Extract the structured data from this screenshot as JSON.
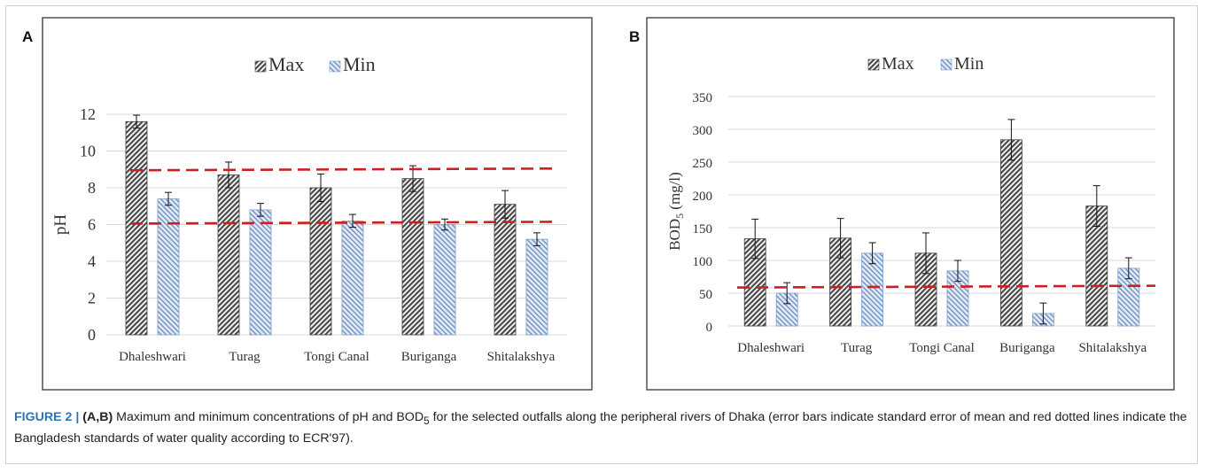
{
  "panels": [
    {
      "letter": "A"
    },
    {
      "letter": "B"
    }
  ],
  "chart_data": [
    {
      "type": "bar",
      "categories": [
        "Dhaleshwari",
        "Turag",
        "Tongi Canal",
        "Buriganga",
        "Shitalakshya"
      ],
      "series": [
        {
          "name": "Max",
          "values": [
            11.6,
            8.7,
            8.0,
            8.5,
            7.1
          ],
          "error": [
            0.35,
            0.7,
            0.75,
            0.7,
            0.75
          ]
        },
        {
          "name": "Min",
          "values": [
            7.4,
            6.8,
            6.2,
            6.0,
            5.2
          ],
          "error": [
            0.35,
            0.35,
            0.35,
            0.3,
            0.35
          ]
        }
      ],
      "ylabel": "pH",
      "ylim": [
        0,
        12
      ],
      "yticks": [
        "0",
        "2",
        "4",
        "6",
        "8",
        "10",
        "12"
      ],
      "standard_lines": [
        6.1,
        9.0
      ],
      "grid": true,
      "legend": "top-center"
    },
    {
      "type": "bar",
      "categories": [
        "Dhaleshwari",
        "Turag",
        "Tongi Canal",
        "Buriganga",
        "Shitalakshya"
      ],
      "series": [
        {
          "name": "Max",
          "values": [
            133,
            134,
            111,
            284,
            183
          ],
          "error": [
            30,
            30,
            31,
            31,
            31
          ]
        },
        {
          "name": "Min",
          "values": [
            50,
            111,
            84,
            19,
            88
          ],
          "error": [
            16,
            16,
            16,
            16,
            16
          ]
        }
      ],
      "ylabel": "BOD",
      "ylabel_sub": "5",
      "ylabel_unit": " (mg/l)",
      "ylim": [
        0,
        350
      ],
      "yticks": [
        "0",
        "50",
        "100",
        "150",
        "200",
        "250",
        "300",
        "350"
      ],
      "standard_lines": [
        60
      ],
      "grid": true,
      "legend": "top-center"
    }
  ],
  "caption": {
    "label": "FIGURE 2 |",
    "panels": "(A,B)",
    "text_before_sub": " Maximum and minimum concentrations of pH and BOD",
    "sub": "5",
    "text_after_sub": " for the selected outfalls along the peripheral rivers of Dhaka (error bars indicate standard error of mean and red dotted lines indicate the Bangladesh standards of water quality according to ECR'97)."
  },
  "colors": {
    "max_stripe": "#4a4a4a",
    "min_stripe": "#6f8fc0",
    "min_fill": "#e3ebf7",
    "reference_line": "#cc1f1f",
    "gridline": "#d9d9d9",
    "caption_label": "#2f73b5"
  }
}
